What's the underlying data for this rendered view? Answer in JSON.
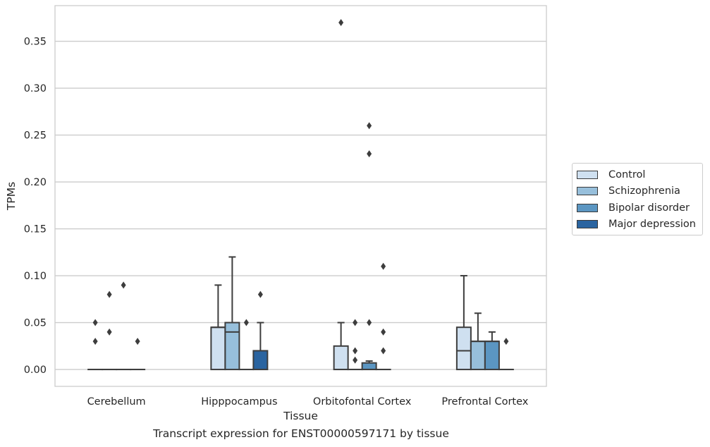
{
  "caption": "Transcript expression for ENST00000597171 by tissue",
  "legend": {
    "items": [
      {
        "label": "Control",
        "color": "#cfe0f0"
      },
      {
        "label": "Schizophrenia",
        "color": "#97bfdb"
      },
      {
        "label": "Bipolar disorder",
        "color": "#5b96c2"
      },
      {
        "label": "Major depression",
        "color": "#2a64a0"
      }
    ]
  },
  "chart_data": {
    "type": "box",
    "title": "",
    "xlabel": "Tissue",
    "ylabel": "TPMs",
    "ylim": [
      -0.018,
      0.388
    ],
    "yticks": [
      "0.00",
      "0.05",
      "0.10",
      "0.15",
      "0.20",
      "0.25",
      "0.30",
      "0.35"
    ],
    "grid": "horizontal",
    "legend_position": "right",
    "categories": [
      "Cerebellum",
      "Hipppocampus",
      "Orbitofontal Cortex",
      "Prefrontal Cortex"
    ],
    "series": [
      {
        "name": "Control",
        "color": "#cfe0f0",
        "boxes": [
          {
            "q1": 0,
            "median": 0,
            "q3": 0,
            "whislo": 0,
            "whishi": 0,
            "fliers": [
              0.03,
              0.05
            ]
          },
          {
            "q1": 0,
            "median": 0.045,
            "q3": 0.045,
            "whislo": 0,
            "whishi": 0.09,
            "fliers": []
          },
          {
            "q1": 0,
            "median": 0,
            "q3": 0.025,
            "whislo": 0,
            "whishi": 0.05,
            "fliers": [
              0.37
            ]
          },
          {
            "q1": 0,
            "median": 0.02,
            "q3": 0.045,
            "whislo": 0,
            "whishi": 0.1,
            "fliers": []
          }
        ]
      },
      {
        "name": "Schizophrenia",
        "color": "#97bfdb",
        "boxes": [
          {
            "q1": 0,
            "median": 0,
            "q3": 0,
            "whislo": 0,
            "whishi": 0,
            "fliers": [
              0.04,
              0.08
            ]
          },
          {
            "q1": 0,
            "median": 0.04,
            "q3": 0.05,
            "whislo": 0,
            "whishi": 0.12,
            "fliers": []
          },
          {
            "q1": 0,
            "median": 0,
            "q3": 0,
            "whislo": 0,
            "whishi": 0,
            "fliers": [
              0.01,
              0.02,
              0.05
            ]
          },
          {
            "q1": 0,
            "median": 0.03,
            "q3": 0.03,
            "whislo": 0,
            "whishi": 0.06,
            "fliers": []
          }
        ]
      },
      {
        "name": "Bipolar disorder",
        "color": "#5b96c2",
        "boxes": [
          {
            "q1": 0,
            "median": 0,
            "q3": 0,
            "whislo": 0,
            "whishi": 0,
            "fliers": [
              0.09
            ]
          },
          {
            "q1": 0,
            "median": 0,
            "q3": 0,
            "whislo": 0,
            "whishi": 0,
            "fliers": [
              0.05
            ]
          },
          {
            "q1": 0,
            "median": 0,
            "q3": 0.007,
            "whislo": 0,
            "whishi": 0.009,
            "fliers": [
              0.05,
              0.23,
              0.26
            ]
          },
          {
            "q1": 0,
            "median": 0.03,
            "q3": 0.03,
            "whislo": 0,
            "whishi": 0.04,
            "fliers": []
          }
        ]
      },
      {
        "name": "Major depression",
        "color": "#2a64a0",
        "boxes": [
          {
            "q1": 0,
            "median": 0,
            "q3": 0,
            "whislo": 0,
            "whishi": 0,
            "fliers": [
              0.03
            ]
          },
          {
            "q1": 0,
            "median": 0,
            "q3": 0.02,
            "whislo": 0,
            "whishi": 0.05,
            "fliers": [
              0.08
            ]
          },
          {
            "q1": 0,
            "median": 0,
            "q3": 0,
            "whislo": 0,
            "whishi": 0,
            "fliers": [
              0.02,
              0.04,
              0.11
            ]
          },
          {
            "q1": 0,
            "median": 0,
            "q3": 0,
            "whislo": 0,
            "whishi": 0,
            "fliers": [
              0.03
            ]
          }
        ]
      }
    ]
  }
}
